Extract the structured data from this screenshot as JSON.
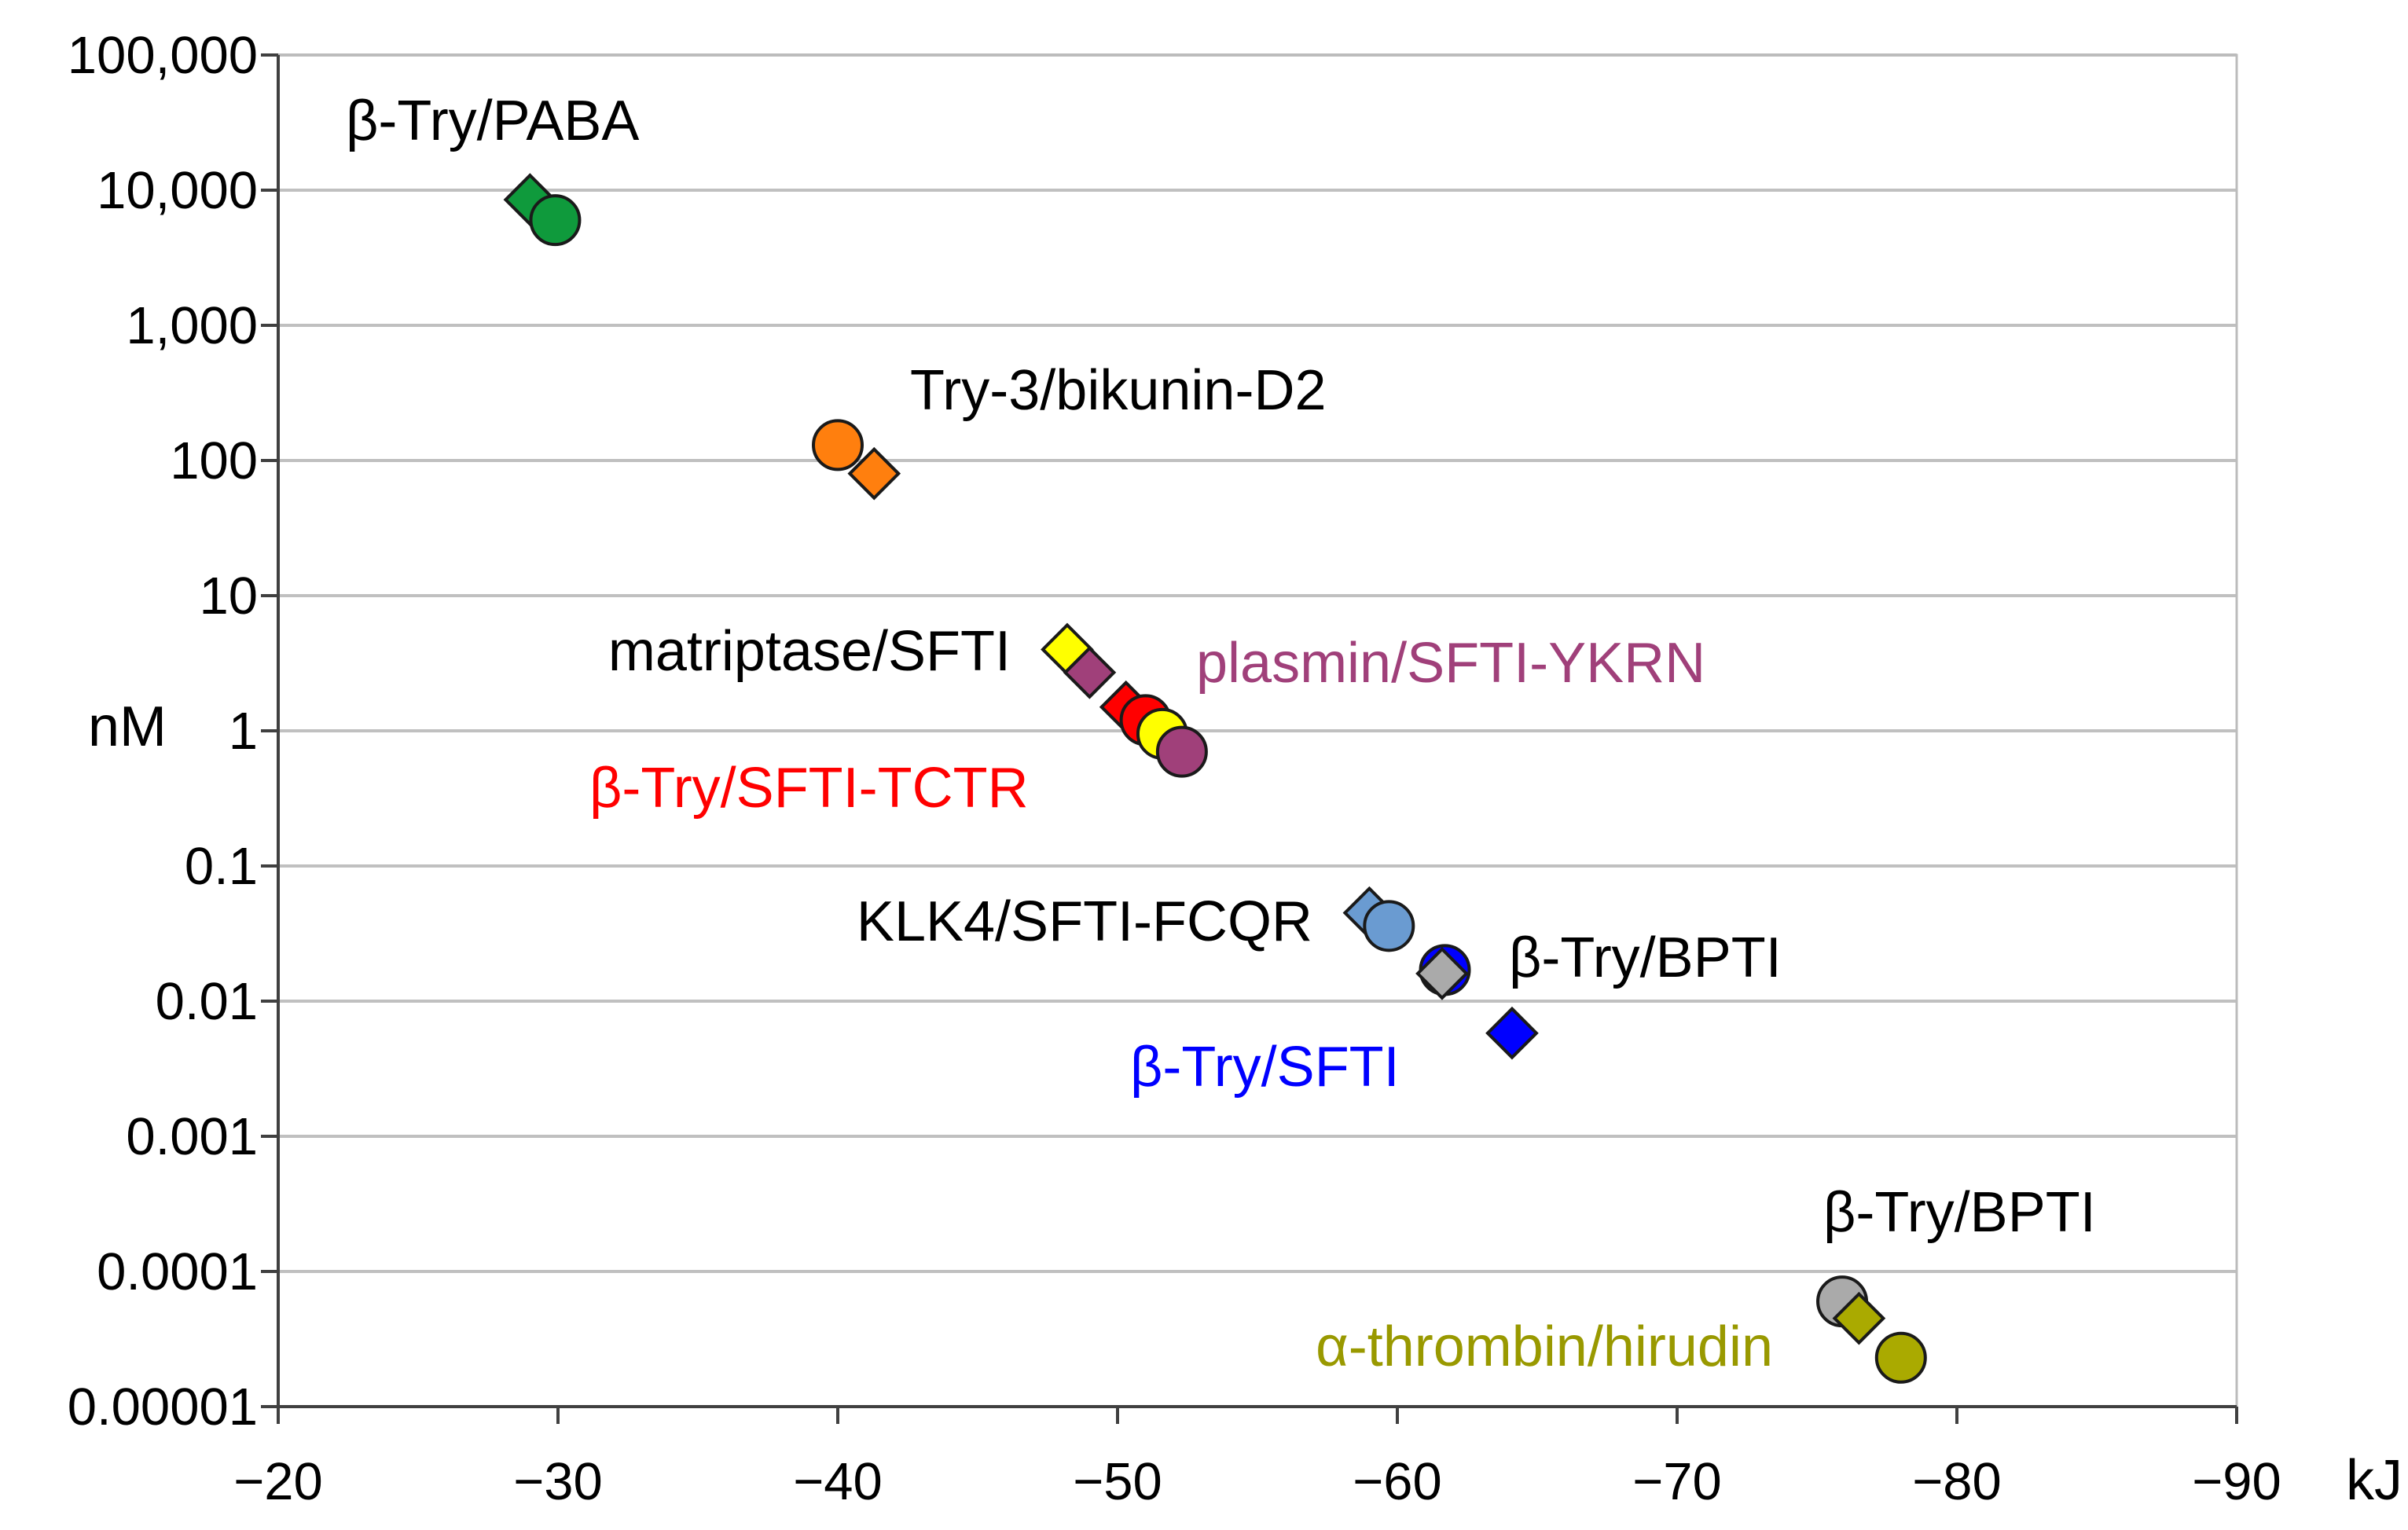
{
  "chart_data": {
    "type": "scatter",
    "xlabel": "kJ",
    "ylabel": "nM",
    "xlim": [
      -20,
      -90
    ],
    "ylim": [
      1e-05,
      100000
    ],
    "yscale": "log",
    "grid": true,
    "x_ticks": [
      "−20",
      "−30",
      "−40",
      "−50",
      "−60",
      "−70",
      "−80",
      "−90"
    ],
    "y_ticks": [
      "100,000",
      "10,000",
      "1,000",
      "100",
      "10",
      "1",
      "0.1",
      "0.01",
      "0.001",
      "0.0001",
      "0.00001"
    ],
    "points": [
      {
        "x": -29.0,
        "y": 8500,
        "marker": "diamond",
        "color": "#0f9a3c"
      },
      {
        "x": -29.9,
        "y": 6000,
        "marker": "circle",
        "color": "#0f9a3c"
      },
      {
        "x": -40.0,
        "y": 130,
        "marker": "circle",
        "color": "#ff7f0e"
      },
      {
        "x": -41.3,
        "y": 80,
        "marker": "diamond",
        "color": "#ff7f0e"
      },
      {
        "x": -48.2,
        "y": 4.0,
        "marker": "diamond",
        "color": "#ffff00"
      },
      {
        "x": -49.0,
        "y": 2.7,
        "marker": "diamond",
        "color": "#a0407a"
      },
      {
        "x": -50.3,
        "y": 1.5,
        "marker": "diamond",
        "color": "#ff0000"
      },
      {
        "x": -51.0,
        "y": 1.2,
        "marker": "circle",
        "color": "#ff0000"
      },
      {
        "x": -51.6,
        "y": 0.95,
        "marker": "circle",
        "color": "#ffff00"
      },
      {
        "x": -52.3,
        "y": 0.7,
        "marker": "circle",
        "color": "#a0407a"
      },
      {
        "x": -59.0,
        "y": 0.045,
        "marker": "diamond",
        "color": "#6a9bd1"
      },
      {
        "x": -59.7,
        "y": 0.036,
        "marker": "circle",
        "color": "#6a9bd1"
      },
      {
        "x": -61.7,
        "y": 0.017,
        "marker": "circle",
        "color": "#0000ff"
      },
      {
        "x": -61.6,
        "y": 0.016,
        "marker": "diamond",
        "color": "#aaaaaa"
      },
      {
        "x": -64.1,
        "y": 0.0058,
        "marker": "diamond",
        "color": "#0000ff"
      },
      {
        "x": -75.9,
        "y": 6e-05,
        "marker": "circle",
        "color": "#aaaaaa"
      },
      {
        "x": -76.5,
        "y": 4.5e-05,
        "marker": "diamond",
        "color": "#aaaa00"
      },
      {
        "x": -78.0,
        "y": 2.3e-05,
        "marker": "circle",
        "color": "#aaaa00"
      }
    ],
    "annotations": [
      {
        "text": "β-Try/PABA",
        "color": "#000000"
      },
      {
        "text": "Try-3/bikunin-D2",
        "color": "#000000"
      },
      {
        "text": "matriptase/SFTI",
        "color": "#000000"
      },
      {
        "text": "plasmin/SFTI-YKRN",
        "color": "#a0407a"
      },
      {
        "text": "β-Try/SFTI-TCTR",
        "color": "#ff0000"
      },
      {
        "text": "KLK4/SFTI-FCQR",
        "color": "#000000"
      },
      {
        "text": "β-Try/BPTI",
        "color": "#000000"
      },
      {
        "text": "β-Try/SFTI",
        "color": "#0000ff"
      },
      {
        "text": "β-Try/BPTI",
        "color": "#000000"
      },
      {
        "text": "α-thrombin/hirudin",
        "color": "#999900"
      }
    ]
  }
}
